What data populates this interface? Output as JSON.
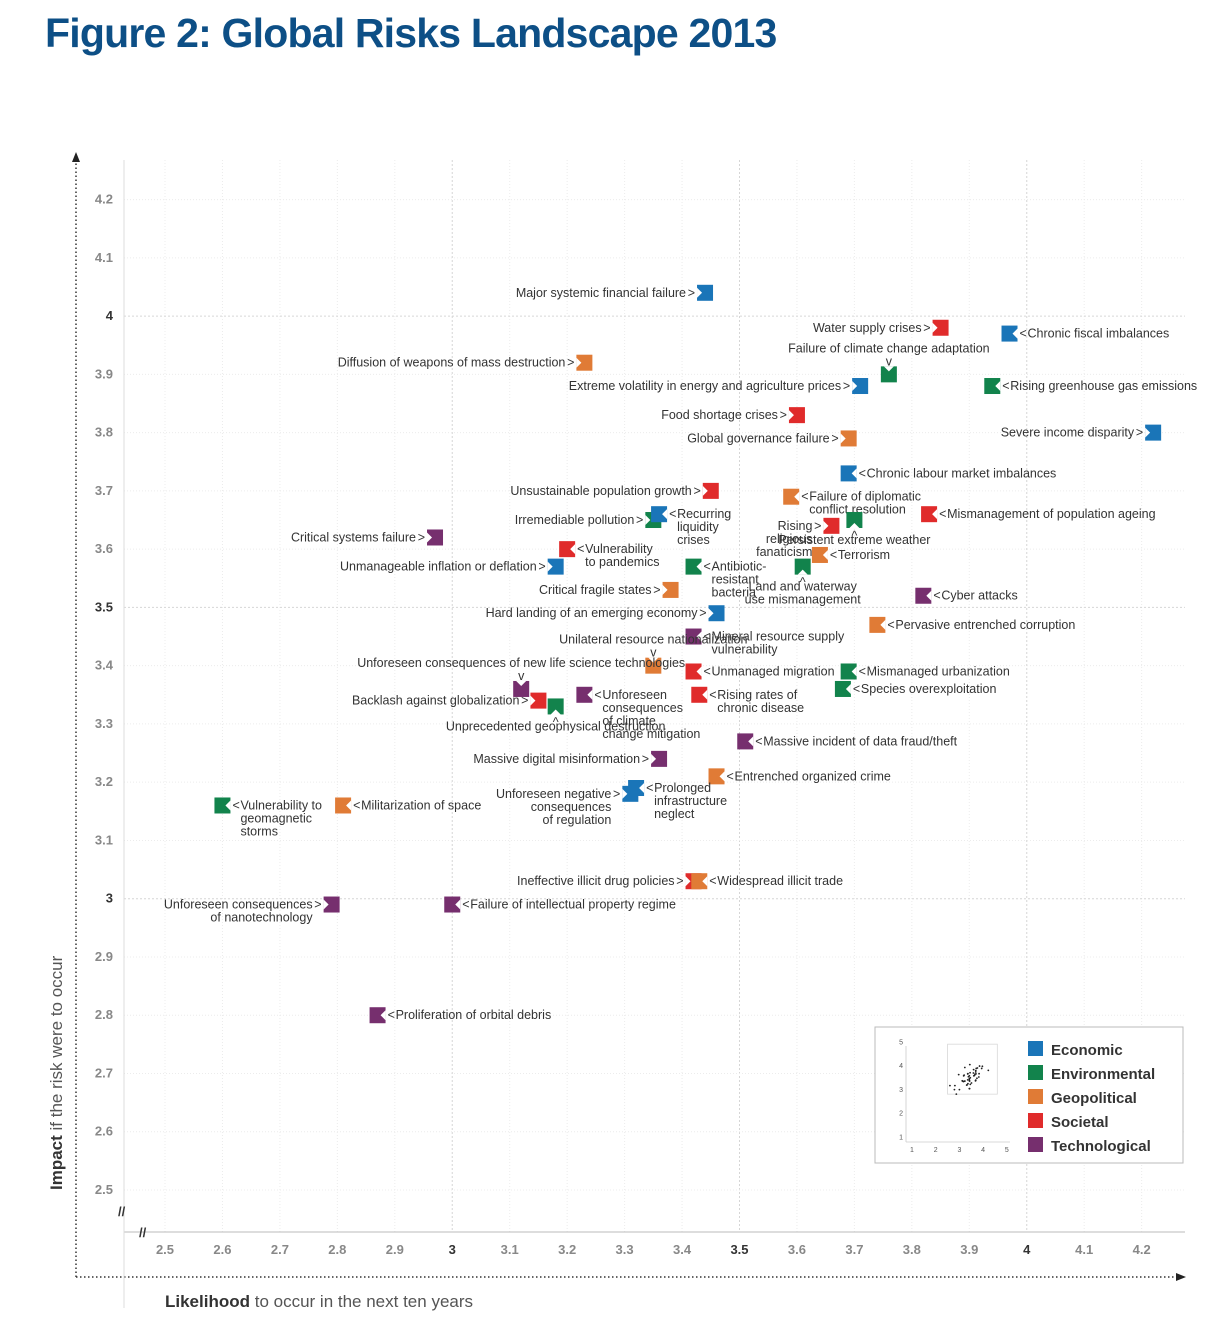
{
  "title": "Figure 2: Global Risks Landscape 2013",
  "chart_data": {
    "type": "scatter",
    "title": "Figure 2: Global Risks Landscape 2013",
    "xlabel_bold": "Likelihood",
    "xlabel_rest": " to occur in the next ten years",
    "ylabel_bold": "Impact",
    "ylabel_rest": " if the risk were to occur",
    "xlim": [
      2.5,
      4.2
    ],
    "ylim": [
      2.5,
      4.2
    ],
    "x_ticks": [
      "2.5",
      "2.6",
      "2.7",
      "2.8",
      "2.9",
      "3",
      "3.1",
      "3.2",
      "3.3",
      "3.4",
      "3.5",
      "3.6",
      "3.7",
      "3.8",
      "3.9",
      "4",
      "4.1",
      "4.2"
    ],
    "y_ticks": [
      "2.5",
      "2.6",
      "2.7",
      "2.8",
      "2.9",
      "3",
      "3.1",
      "3.2",
      "3.3",
      "3.4",
      "3.5",
      "3.6",
      "3.7",
      "3.8",
      "3.9",
      "4",
      "4.1",
      "4.2"
    ],
    "axis_break": "//",
    "grid": true,
    "legend_position": "bottom-right",
    "categories": [
      {
        "name": "Economic",
        "color": "#1a75b8"
      },
      {
        "name": "Environmental",
        "color": "#12834c"
      },
      {
        "name": "Geopolitical",
        "color": "#e07b36"
      },
      {
        "name": "Societal",
        "color": "#e02b2b"
      },
      {
        "name": "Technological",
        "color": "#762f6e"
      }
    ],
    "points": [
      {
        "label": [
          "Major systemic financial failure"
        ],
        "x": 3.44,
        "y": 4.04,
        "cat": "Economic",
        "pos": "left"
      },
      {
        "label": [
          "Water supply crises"
        ],
        "x": 3.85,
        "y": 3.98,
        "cat": "Societal",
        "pos": "left"
      },
      {
        "label": [
          "Chronic fiscal imbalances"
        ],
        "x": 3.97,
        "y": 3.97,
        "cat": "Economic",
        "pos": "right"
      },
      {
        "label": [
          "Diffusion of weapons of mass destruction"
        ],
        "x": 3.23,
        "y": 3.92,
        "cat": "Geopolitical",
        "pos": "left"
      },
      {
        "label": [
          "Failure of climate change adaptation"
        ],
        "x": 3.76,
        "y": 3.9,
        "cat": "Environmental",
        "pos": "above"
      },
      {
        "label": [
          "Extreme volatility in energy and agriculture prices"
        ],
        "x": 3.71,
        "y": 3.88,
        "cat": "Economic",
        "pos": "left"
      },
      {
        "label": [
          "Rising greenhouse gas emissions"
        ],
        "x": 3.94,
        "y": 3.88,
        "cat": "Environmental",
        "pos": "right"
      },
      {
        "label": [
          "Food shortage crises"
        ],
        "x": 3.6,
        "y": 3.83,
        "cat": "Societal",
        "pos": "left"
      },
      {
        "label": [
          "Severe income disparity"
        ],
        "x": 4.22,
        "y": 3.8,
        "cat": "Economic",
        "pos": "left"
      },
      {
        "label": [
          "Global governance failure"
        ],
        "x": 3.69,
        "y": 3.79,
        "cat": "Geopolitical",
        "pos": "left"
      },
      {
        "label": [
          "Chronic labour market imbalances"
        ],
        "x": 3.69,
        "y": 3.73,
        "cat": "Economic",
        "pos": "right"
      },
      {
        "label": [
          "Unsustainable population growth"
        ],
        "x": 3.45,
        "y": 3.7,
        "cat": "Societal",
        "pos": "left"
      },
      {
        "label": [
          "Failure of diplomatic",
          "conflict resolution"
        ],
        "x": 3.59,
        "y": 3.69,
        "cat": "Geopolitical",
        "pos": "right"
      },
      {
        "label": [
          "Mismanagement of population ageing"
        ],
        "x": 3.83,
        "y": 3.66,
        "cat": "Societal",
        "pos": "right"
      },
      {
        "label": [
          "Irremediable pollution"
        ],
        "x": 3.35,
        "y": 3.65,
        "cat": "Environmental",
        "pos": "left"
      },
      {
        "label": [
          "Recurring",
          "liquidity",
          "crises"
        ],
        "x": 3.36,
        "y": 3.66,
        "cat": "Economic",
        "pos": "right"
      },
      {
        "label": [
          "Rising",
          "religious",
          "fanaticism"
        ],
        "x": 3.66,
        "y": 3.64,
        "cat": "Societal",
        "pos": "left"
      },
      {
        "label": [
          "Persistent extreme weather"
        ],
        "x": 3.7,
        "y": 3.65,
        "cat": "Environmental",
        "pos": "below"
      },
      {
        "label": [
          "Critical systems failure"
        ],
        "x": 2.97,
        "y": 3.62,
        "cat": "Technological",
        "pos": "left"
      },
      {
        "label": [
          "Vulnerability",
          "to pandemics"
        ],
        "x": 3.2,
        "y": 3.6,
        "cat": "Societal",
        "pos": "right"
      },
      {
        "label": [
          "Terrorism"
        ],
        "x": 3.64,
        "y": 3.59,
        "cat": "Geopolitical",
        "pos": "right"
      },
      {
        "label": [
          "Unmanageable inflation or deflation"
        ],
        "x": 3.18,
        "y": 3.57,
        "cat": "Economic",
        "pos": "left"
      },
      {
        "label": [
          "Antibiotic-",
          "resistant",
          "bacteria"
        ],
        "x": 3.42,
        "y": 3.57,
        "cat": "Environmental",
        "pos": "right"
      },
      {
        "label": [
          "Land and waterway",
          "use mismanagement"
        ],
        "x": 3.61,
        "y": 3.57,
        "cat": "Environmental",
        "pos": "below"
      },
      {
        "label": [
          "Critical fragile states"
        ],
        "x": 3.38,
        "y": 3.53,
        "cat": "Geopolitical",
        "pos": "left"
      },
      {
        "label": [
          "Cyber attacks"
        ],
        "x": 3.82,
        "y": 3.52,
        "cat": "Technological",
        "pos": "right"
      },
      {
        "label": [
          "Hard landing of an emerging economy"
        ],
        "x": 3.46,
        "y": 3.49,
        "cat": "Economic",
        "pos": "left"
      },
      {
        "label": [
          "Pervasive entrenched corruption"
        ],
        "x": 3.74,
        "y": 3.47,
        "cat": "Geopolitical",
        "pos": "right"
      },
      {
        "label": [
          "Mineral resource supply",
          "vulnerability"
        ],
        "x": 3.42,
        "y": 3.45,
        "cat": "Technological",
        "pos": "right"
      },
      {
        "label": [
          "Unilateral resource nationalization"
        ],
        "x": 3.35,
        "y": 3.4,
        "cat": "Geopolitical",
        "pos": "above"
      },
      {
        "label": [
          "Unmanaged migration"
        ],
        "x": 3.42,
        "y": 3.39,
        "cat": "Societal",
        "pos": "right"
      },
      {
        "label": [
          "Mismanaged urbanization"
        ],
        "x": 3.69,
        "y": 3.39,
        "cat": "Environmental",
        "pos": "right"
      },
      {
        "label": [
          "Unforeseen consequences of new life science technologies"
        ],
        "x": 3.12,
        "y": 3.36,
        "cat": "Technological",
        "pos": "above"
      },
      {
        "label": [
          "Species overexploitation"
        ],
        "x": 3.68,
        "y": 3.36,
        "cat": "Environmental",
        "pos": "right"
      },
      {
        "label": [
          "Unforeseen",
          "consequences",
          "of climate",
          "change mitigation"
        ],
        "x": 3.23,
        "y": 3.35,
        "cat": "Technological",
        "pos": "right"
      },
      {
        "label": [
          "Rising rates of",
          "chronic disease"
        ],
        "x": 3.43,
        "y": 3.35,
        "cat": "Societal",
        "pos": "right"
      },
      {
        "label": [
          "Backlash against globalization"
        ],
        "x": 3.15,
        "y": 3.34,
        "cat": "Societal",
        "pos": "left"
      },
      {
        "label": [
          "Unprecedented geophysical destruction"
        ],
        "x": 3.18,
        "y": 3.33,
        "cat": "Environmental",
        "pos": "below"
      },
      {
        "label": [
          "Massive incident of data fraud/theft"
        ],
        "x": 3.51,
        "y": 3.27,
        "cat": "Technological",
        "pos": "right"
      },
      {
        "label": [
          "Massive digital misinformation"
        ],
        "x": 3.36,
        "y": 3.24,
        "cat": "Technological",
        "pos": "left"
      },
      {
        "label": [
          "Entrenched organized crime"
        ],
        "x": 3.46,
        "y": 3.21,
        "cat": "Geopolitical",
        "pos": "right"
      },
      {
        "label": [
          "Unforeseen negative",
          "consequences",
          "of regulation"
        ],
        "x": 3.31,
        "y": 3.18,
        "cat": "Economic",
        "pos": "left"
      },
      {
        "label": [
          "Prolonged",
          "infrastructure",
          "neglect"
        ],
        "x": 3.32,
        "y": 3.19,
        "cat": "Economic",
        "pos": "right"
      },
      {
        "label": [
          "Vulnerability to",
          "geomagnetic",
          "storms"
        ],
        "x": 2.6,
        "y": 3.16,
        "cat": "Environmental",
        "pos": "right"
      },
      {
        "label": [
          "Militarization of space"
        ],
        "x": 2.81,
        "y": 3.16,
        "cat": "Geopolitical",
        "pos": "right"
      },
      {
        "label": [
          "Ineffective illicit drug policies"
        ],
        "x": 3.42,
        "y": 3.03,
        "cat": "Societal",
        "pos": "left"
      },
      {
        "label": [
          "Widespread illicit trade"
        ],
        "x": 3.43,
        "y": 3.03,
        "cat": "Geopolitical",
        "pos": "right"
      },
      {
        "label": [
          "Unforeseen consequences",
          "of nanotechnology"
        ],
        "x": 2.79,
        "y": 2.99,
        "cat": "Technological",
        "pos": "left"
      },
      {
        "label": [
          "Failure of intellectual property regime"
        ],
        "x": 3.0,
        "y": 2.99,
        "cat": "Technological",
        "pos": "right"
      },
      {
        "label": [
          "Proliferation of orbital debris"
        ],
        "x": 2.87,
        "y": 2.8,
        "cat": "Technological",
        "pos": "right"
      }
    ],
    "inset": {
      "x_ticks": [
        "1",
        "2",
        "3",
        "4",
        "5"
      ],
      "y_ticks": [
        "1",
        "2",
        "3",
        "4",
        "5"
      ]
    }
  }
}
